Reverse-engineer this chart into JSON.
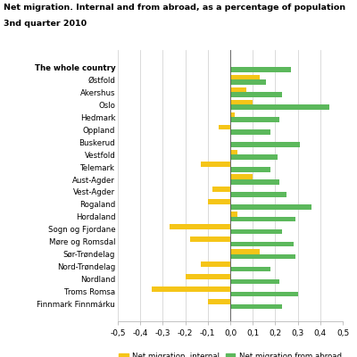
{
  "title_line1": "Net migration. Internal and from abroad, as a percentage of population",
  "title_line2": "3nd quarter 2010",
  "categories": [
    "The whole country",
    "Østfold",
    "Akershus",
    "Oslo",
    "Hedmark",
    "Oppland",
    "Buskerud",
    "Vestfold",
    "Telemark",
    "Aust-Agder",
    "Vest-Agder",
    "Rogaland",
    "Hordaland",
    "Sogn og Fjordane",
    "Møre og Romsdal",
    "Sør-Trøndelag",
    "Nord-Trøndelag",
    "Nordland",
    "Troms Romsa",
    "Finnmark Finnmárku"
  ],
  "internal": [
    0.0,
    0.13,
    0.07,
    0.1,
    0.02,
    -0.05,
    0.0,
    0.03,
    -0.13,
    0.1,
    -0.08,
    -0.1,
    0.03,
    -0.27,
    -0.18,
    0.13,
    -0.13,
    -0.2,
    -0.35,
    -0.1
  ],
  "abroad": [
    0.27,
    0.16,
    0.23,
    0.44,
    0.22,
    0.18,
    0.31,
    0.21,
    0.18,
    0.22,
    0.25,
    0.36,
    0.29,
    0.23,
    0.28,
    0.29,
    0.18,
    0.22,
    0.3,
    0.23
  ],
  "color_internal": "#f5c518",
  "color_abroad": "#5cb85c",
  "xlim": [
    -0.5,
    0.5
  ],
  "xticks": [
    -0.5,
    -0.4,
    -0.3,
    -0.2,
    -0.1,
    0.0,
    0.1,
    0.2,
    0.3,
    0.4,
    0.5
  ],
  "xtick_labels": [
    "-0,5",
    "-0,4",
    "-0,3",
    "-0,2",
    "-0,1",
    "0,0",
    "0,1",
    "0,2",
    "0,3",
    "0,4",
    "0,5"
  ],
  "legend_internal": "Net migration, internal",
  "legend_abroad": "Net migration from abroad",
  "bar_height": 0.4
}
